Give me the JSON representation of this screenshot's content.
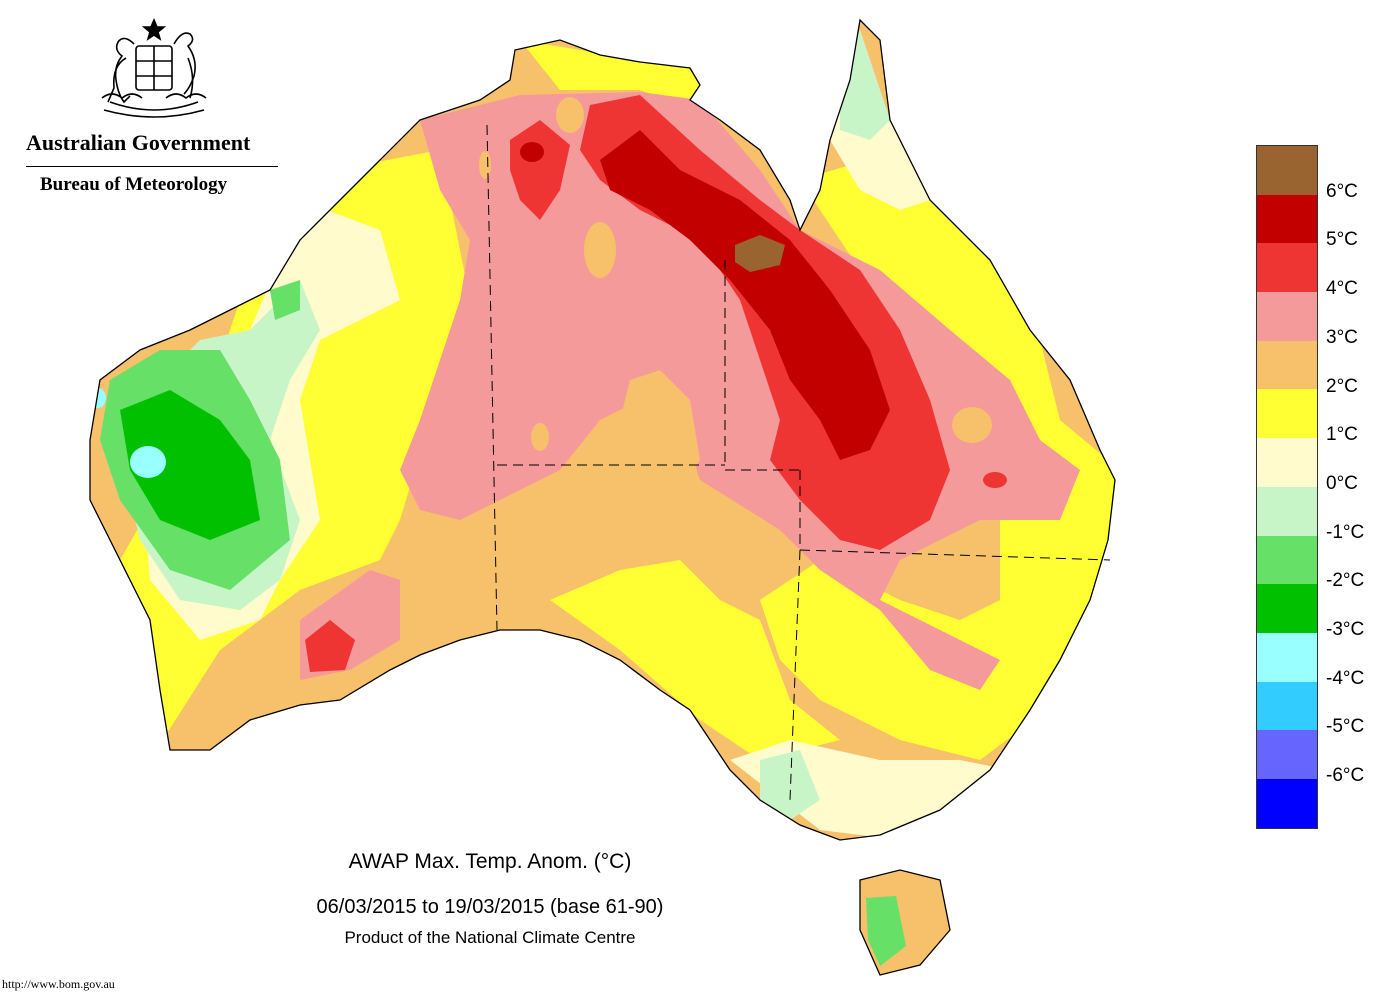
{
  "header": {
    "government": "Australian Government",
    "bureau": "Bureau of Meteorology"
  },
  "caption": {
    "title": "AWAP Max. Temp. Anom. (°C)",
    "dates": "06/03/2015 to 19/03/2015 (base 61-90)",
    "product": "Product of the National Climate Centre"
  },
  "footer": {
    "url": "http://www.bom.gov.au"
  },
  "legend": {
    "colors": [
      "#9a6431",
      "#c20000",
      "#ef3434",
      "#f59a9a",
      "#f7c06a",
      "#ffff33",
      "#fffbcc",
      "#c8f5c8",
      "#66e066",
      "#00c000",
      "#99ffff",
      "#33ccff",
      "#6666ff",
      "#0000ff"
    ],
    "labels": [
      "6°C",
      "5°C",
      "4°C",
      "3°C",
      "2°C",
      "1°C",
      "0°C",
      "-1°C",
      "-2°C",
      "-3°C",
      "-4°C",
      "-5°C",
      "-6°C"
    ]
  },
  "map_colors": {
    "ocean": "#ffffff",
    "above_6": "#9a6431",
    "5_6": "#c20000",
    "4_5": "#ef3434",
    "3_4": "#f59a9a",
    "2_3": "#f7c06a",
    "1_2": "#ffff33",
    "0_1": "#fffbcc",
    "m1_0": "#c8f5c8",
    "m2_m1": "#66e066",
    "m3_m2": "#00c000",
    "m4_m3": "#99ffff",
    "m5_m4": "#33ccff"
  }
}
